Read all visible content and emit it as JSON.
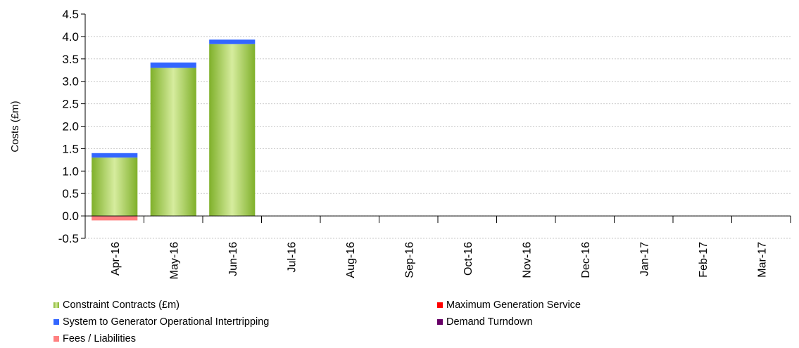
{
  "chart_data": {
    "type": "bar",
    "stacked": true,
    "ylabel": "Costs (£m)",
    "xlabel": "",
    "ylim": [
      -0.5,
      4.5
    ],
    "yticks": [
      "4.5",
      "4.0",
      "3.5",
      "3.0",
      "2.5",
      "2.0",
      "1.5",
      "1.0",
      "0.5",
      "0.0",
      "-0.5"
    ],
    "categories": [
      "Apr-16",
      "May-16",
      "Jun-16",
      "Jul-16",
      "Aug-16",
      "Sep-16",
      "Oct-16",
      "Nov-16",
      "Dec-16",
      "Jan-17",
      "Feb-17",
      "Mar-17"
    ],
    "grid": true,
    "legend_position": "bottom",
    "series": [
      {
        "name": "Constraint Contracts (£m)",
        "color": "#9ccc3c",
        "values": [
          1.3,
          3.3,
          3.83,
          0,
          0,
          0,
          0,
          0,
          0,
          0,
          0,
          0
        ]
      },
      {
        "name": "Maximum Generation Service",
        "color": "#ff0000",
        "values": [
          0,
          0,
          0,
          0,
          0,
          0,
          0,
          0,
          0,
          0,
          0,
          0
        ]
      },
      {
        "name": "System to Generator Operational Intertripping",
        "color": "#3366ff",
        "values": [
          0.1,
          0.12,
          0.1,
          0,
          0,
          0,
          0,
          0,
          0,
          0,
          0,
          0
        ]
      },
      {
        "name": "Demand Turndown",
        "color": "#660066",
        "values": [
          0,
          0,
          0,
          0,
          0,
          0,
          0,
          0,
          0,
          0,
          0,
          0
        ]
      },
      {
        "name": "Fees / Liabilities",
        "color": "#ff8080",
        "values": [
          -0.1,
          0,
          0,
          0,
          0,
          0,
          0,
          0,
          0,
          0,
          0,
          0
        ]
      }
    ]
  }
}
